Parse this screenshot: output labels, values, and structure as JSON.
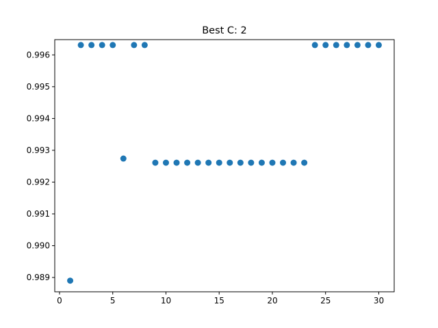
{
  "chart_data": {
    "type": "scatter",
    "title": "Best C: 2",
    "xlabel": "",
    "ylabel": "",
    "xlim": [
      -0.45,
      31.45
    ],
    "ylim": [
      0.98855,
      0.99648
    ],
    "xticks": [
      0,
      5,
      10,
      15,
      20,
      25,
      30
    ],
    "xtick_labels": [
      "0",
      "5",
      "10",
      "15",
      "20",
      "25",
      "30"
    ],
    "yticks": [
      0.989,
      0.99,
      0.991,
      0.992,
      0.993,
      0.994,
      0.995,
      0.996
    ],
    "ytick_labels": [
      "0.989",
      "0.990",
      "0.991",
      "0.992",
      "0.993",
      "0.994",
      "0.995",
      "0.996"
    ],
    "grid": false,
    "marker_color": "#1f77b4",
    "x": [
      1,
      2,
      3,
      4,
      5,
      6,
      7,
      8,
      9,
      10,
      11,
      12,
      13,
      14,
      15,
      16,
      17,
      18,
      19,
      20,
      21,
      22,
      23,
      24,
      25,
      26,
      27,
      28,
      29,
      30
    ],
    "y": [
      0.9889,
      0.99631,
      0.99631,
      0.99631,
      0.99631,
      0.99274,
      0.99631,
      0.99631,
      0.99261,
      0.99261,
      0.99261,
      0.99261,
      0.99261,
      0.99261,
      0.99261,
      0.99261,
      0.99261,
      0.99261,
      0.99261,
      0.99261,
      0.99261,
      0.99261,
      0.99261,
      0.99631,
      0.99631,
      0.99631,
      0.99631,
      0.99631,
      0.99631,
      0.99631
    ]
  }
}
